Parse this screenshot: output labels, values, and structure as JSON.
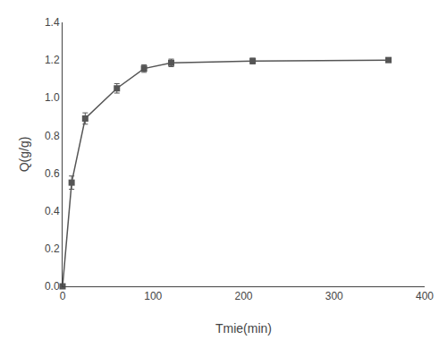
{
  "chart_data": {
    "type": "line",
    "x": [
      0,
      10,
      25,
      60,
      90,
      120,
      210,
      360
    ],
    "values": [
      0.0,
      0.55,
      0.89,
      1.05,
      1.155,
      1.185,
      1.195,
      1.2
    ],
    "yerr": [
      0.0,
      0.035,
      0.03,
      0.025,
      0.02,
      0.02,
      0.015,
      0.01
    ],
    "xlabel": "Tmie(min)",
    "ylabel": "Q(g/g)",
    "xlim": [
      0,
      400
    ],
    "ylim": [
      0.0,
      1.4
    ],
    "xticks": [
      0,
      100,
      200,
      300,
      400
    ],
    "yticks": [
      {
        "value": 0,
        "label": "0.0"
      },
      0.2,
      0.4,
      0.6,
      0.8,
      {
        "value": 1,
        "label": "1.0"
      },
      1.2,
      1.4
    ],
    "color": "#555555",
    "marker": "square",
    "line_style": "solid",
    "grid": false
  }
}
